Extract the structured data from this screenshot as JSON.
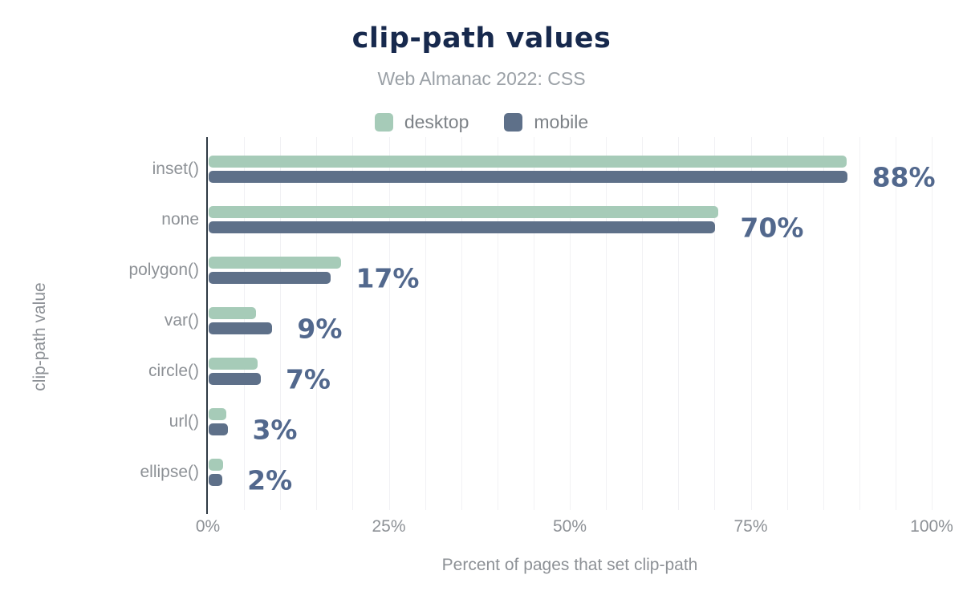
{
  "chart": {
    "title": "clip-path values",
    "subtitle": "Web Almanac 2022: CSS",
    "xlabel": "Percent of pages that set clip-path",
    "ylabel": "clip-path value"
  },
  "chart_data": {
    "type": "bar",
    "orientation": "horizontal",
    "title": "clip-path values",
    "subtitle": "Web Almanac 2022: CSS",
    "xlabel": "Percent of pages that set clip-path",
    "ylabel": "clip-path value",
    "categories": [
      "inset()",
      "none",
      "polygon()",
      "var()",
      "circle()",
      "url()",
      "ellipse()"
    ],
    "series": [
      {
        "name": "desktop",
        "color": "#a6cbb8",
        "values": [
          88.1,
          70.4,
          18.3,
          6.5,
          6.8,
          2.4,
          2.0
        ]
      },
      {
        "name": "mobile",
        "color": "#5e7089",
        "values": [
          88.2,
          70.0,
          16.9,
          8.8,
          7.2,
          2.6,
          1.9
        ]
      }
    ],
    "value_labels": [
      "88%",
      "70%",
      "17%",
      "9%",
      "7%",
      "3%",
      "2%"
    ],
    "x_ticks": [
      "0%",
      "25%",
      "50%",
      "75%",
      "100%"
    ],
    "x_tick_values": [
      0,
      25,
      50,
      75,
      100
    ],
    "xlim": [
      0,
      100
    ],
    "grid": "vertical, minor lines every 5%",
    "legend_position": "top"
  },
  "colors": {
    "title": "#17294d",
    "subtitle": "#9aa0a6",
    "axis_text": "#8d9196",
    "legend_text": "#7d8287",
    "value_label": "#52688d",
    "axis_line": "#2f3a44",
    "gridline": "#f1f1f4",
    "background": "#ffffff",
    "desktop": "#a6cbb8",
    "mobile": "#5e7089"
  }
}
